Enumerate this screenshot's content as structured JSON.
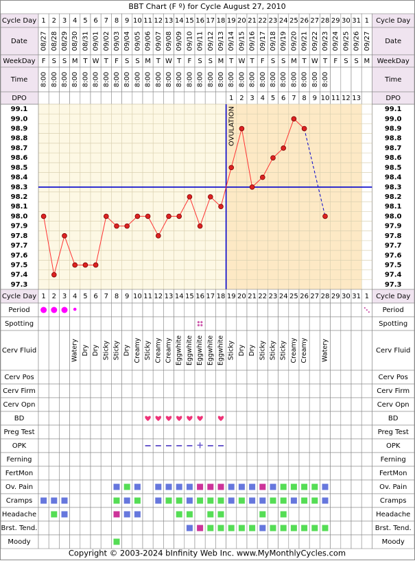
{
  "title": "BBT Chart (F º) for Cycle August 27, 2010",
  "copyright": "Copyright © 2003-2024 bInfinity Web Inc.     www.MyMonthlyCycles.com",
  "ovulation_label": "OVULATION",
  "row_labels": {
    "cycle_day": "Cycle Day",
    "date": "Date",
    "weekday": "WeekDay",
    "time": "Time",
    "dpo": "DPO",
    "period": "Period",
    "spotting": "Spotting",
    "cerv_fluid": "Cerv Fluid",
    "cerv_pos": "Cerv Pos",
    "cerv_firm": "Cerv Firm",
    "cerv_opn": "Cerv Opn",
    "bd": "BD",
    "preg_test": "Preg Test",
    "opk": "OPK",
    "ferning": "Ferning",
    "fertmon": "FertMon",
    "ov_pain": "Ov. Pain",
    "cramps": "Cramps",
    "headache": "Headache",
    "brst_tend": "Brst. Tend.",
    "moody": "Moody"
  },
  "colors": {
    "pre_ovulation_bg": "#fdf8e4",
    "post_ovulation_bg": "#fde9c5",
    "grid": "#d9d0b0",
    "blue_line": "#0000cc",
    "temp_line": "#ff3333",
    "temp_point": "#dd2222",
    "period": "#ff00ff",
    "spotting": "#cc55aa",
    "heart": "#ee3377",
    "opk": "#6a5acd",
    "symptom_blue": "#6677dd",
    "symptom_green": "#55dd55",
    "symptom_pink": "#cc3399",
    "header_bg": "#f0e4f0"
  },
  "cycle_days": [
    "1",
    "2",
    "3",
    "4",
    "5",
    "6",
    "7",
    "8",
    "9",
    "10",
    "11",
    "12",
    "13",
    "14",
    "15",
    "16",
    "17",
    "18",
    "19",
    "20",
    "21",
    "22",
    "23",
    "24",
    "25",
    "26",
    "27",
    "28",
    "29",
    "30",
    "31",
    "1"
  ],
  "dates": [
    "08/27",
    "08/28",
    "08/29",
    "08/30",
    "08/31",
    "09/01",
    "09/02",
    "09/03",
    "09/04",
    "09/05",
    "09/06",
    "09/07",
    "09/08",
    "09/09",
    "09/10",
    "09/11",
    "09/12",
    "09/13",
    "09/14",
    "09/15",
    "09/16",
    "09/17",
    "09/18",
    "09/19",
    "09/20",
    "09/21",
    "09/22",
    "09/23",
    "09/24",
    "09/25",
    "09/26",
    "09/27"
  ],
  "weekdays": [
    "F",
    "S",
    "S",
    "M",
    "T",
    "W",
    "T",
    "F",
    "S",
    "S",
    "M",
    "T",
    "W",
    "T",
    "F",
    "S",
    "S",
    "M",
    "T",
    "W",
    "T",
    "F",
    "S",
    "S",
    "M",
    "T",
    "W",
    "T",
    "F",
    "S",
    "S",
    "M"
  ],
  "times": [
    "8:00",
    "8:00",
    "8:00",
    "8:00",
    "8:00",
    "8:00",
    "8:00",
    "8:00",
    "8:00",
    "8:00",
    "8:00",
    "8:00",
    "8:00",
    "8:00",
    "8:00",
    "8:00",
    "8:00",
    "8:00",
    "8:00",
    "8:00",
    "8:00",
    "8:00",
    "8:00",
    "8:00",
    "8:00",
    "8:00",
    "8:00",
    "8:00",
    "",
    "",
    "",
    ""
  ],
  "dpo": [
    "",
    "",
    "",
    "",
    "",
    "",
    "",
    "",
    "",
    "",
    "",
    "",
    "",
    "",
    "",
    "",
    "",
    "",
    "1",
    "2",
    "3",
    "4",
    "5",
    "6",
    "7",
    "8",
    "9",
    "10",
    "11",
    "12",
    "13",
    ""
  ],
  "period": [
    "heavy",
    "heavy",
    "heavy",
    "light",
    "",
    "",
    "",
    "",
    "",
    "",
    "",
    "",
    "",
    "",
    "",
    "",
    "",
    "",
    "",
    "",
    "",
    "",
    "",
    "",
    "",
    "",
    "",
    "",
    "",
    "",
    "",
    "spotting"
  ],
  "spotting": [
    "",
    "",
    "",
    "",
    "",
    "",
    "",
    "",
    "",
    "",
    "",
    "",
    "",
    "",
    "",
    "yes",
    "",
    "",
    "",
    "",
    "",
    "",
    "",
    "",
    "",
    "",
    "",
    "",
    "",
    "",
    "",
    ""
  ],
  "cerv_fluid": [
    "",
    "",
    "",
    "Watery",
    "Dry",
    "Dry",
    "Sticky",
    "Sticky",
    "Dry",
    "Creamy",
    "Sticky",
    "Creamy",
    "Creamy",
    "Eggwhite",
    "Eggwhite",
    "Eggwhite",
    "Eggwhite",
    "Eggwhite",
    "Sticky",
    "Dry",
    "Dry",
    "Sticky",
    "Sticky",
    "Sticky",
    "Creamy",
    "Creamy",
    "",
    "Watery",
    "",
    "",
    "",
    ""
  ],
  "bd": [
    "",
    "",
    "",
    "",
    "",
    "",
    "",
    "",
    "",
    "",
    "1",
    "1",
    "1",
    "1",
    "1",
    "1",
    "",
    "1",
    "",
    "",
    "",
    "",
    "",
    "",
    "",
    "",
    "",
    "",
    "",
    "",
    "",
    ""
  ],
  "opk": [
    "",
    "",
    "",
    "",
    "",
    "",
    "",
    "",
    "",
    "",
    "-",
    "-",
    "-",
    "-",
    "-",
    "+",
    "-",
    "-",
    "",
    "",
    "",
    "",
    "",
    "",
    "",
    "",
    "",
    "",
    "",
    "",
    "",
    ""
  ],
  "ov_pain": [
    "",
    "",
    "",
    "",
    "",
    "",
    "",
    "B",
    "G",
    "B",
    "",
    "B",
    "B",
    "B",
    "B",
    "P",
    "P",
    "P",
    "B",
    "B",
    "B",
    "P",
    "B",
    "G",
    "G",
    "G",
    "G",
    "B",
    "",
    "",
    "",
    ""
  ],
  "cramps": [
    "B",
    "B",
    "B",
    "",
    "",
    "",
    "",
    "G",
    "B",
    "G",
    "",
    "B",
    "G",
    "G",
    "B",
    "G",
    "G",
    "G",
    "B",
    "G",
    "B",
    "B",
    "G",
    "G",
    "B",
    "G",
    "G",
    "B",
    "",
    "",
    "",
    ""
  ],
  "headache": [
    "",
    "G",
    "B",
    "",
    "",
    "",
    "",
    "P",
    "B",
    "B",
    "",
    "",
    "",
    "G",
    "G",
    "",
    "G",
    "G",
    "",
    "",
    "",
    "G",
    "",
    "G",
    "",
    "",
    "",
    "",
    "",
    "",
    "",
    ""
  ],
  "brst_tend": [
    "",
    "",
    "",
    "",
    "",
    "",
    "",
    "",
    "",
    "",
    "",
    "",
    "",
    "",
    "B",
    "P",
    "G",
    "G",
    "G",
    "G",
    "G",
    "B",
    "G",
    "G",
    "G",
    "G",
    "G",
    "G",
    "",
    "",
    "",
    ""
  ],
  "moody": [
    "",
    "",
    "",
    "",
    "",
    "",
    "",
    "G",
    "",
    "",
    "",
    "",
    "",
    "",
    "",
    "",
    "",
    "",
    "",
    "",
    "",
    "",
    "",
    "",
    "",
    "",
    "",
    "",
    "",
    "",
    "",
    ""
  ],
  "chart_data": {
    "type": "line",
    "title": "BBT Chart (F º) for Cycle August 27, 2010",
    "xlabel": "Cycle Day",
    "ylabel": "",
    "x": [
      1,
      2,
      3,
      4,
      5,
      6,
      7,
      8,
      9,
      10,
      11,
      12,
      13,
      14,
      15,
      16,
      17,
      18,
      19,
      20,
      21,
      22,
      23,
      24,
      25,
      26,
      27,
      28
    ],
    "temperatures": [
      98.0,
      97.4,
      97.8,
      97.5,
      97.5,
      97.5,
      98.0,
      97.9,
      97.9,
      98.0,
      98.0,
      97.8,
      98.0,
      98.0,
      98.2,
      97.9,
      98.2,
      98.1,
      98.5,
      98.9,
      98.3,
      98.4,
      98.6,
      98.7,
      99.0,
      98.9,
      null,
      98.0
    ],
    "ylim": [
      97.3,
      99.1
    ],
    "yticks": [
      "99.1",
      "99.0",
      "98.9",
      "98.8",
      "98.7",
      "98.6",
      "98.5",
      "98.4",
      "98.3",
      "98.2",
      "98.1",
      "98.0",
      "97.9",
      "97.8",
      "97.7",
      "97.6",
      "97.5",
      "97.4",
      "97.3"
    ],
    "coverline": 98.3,
    "ovulation_day": 18,
    "dashed_segment": [
      26,
      28
    ],
    "grid": true
  }
}
